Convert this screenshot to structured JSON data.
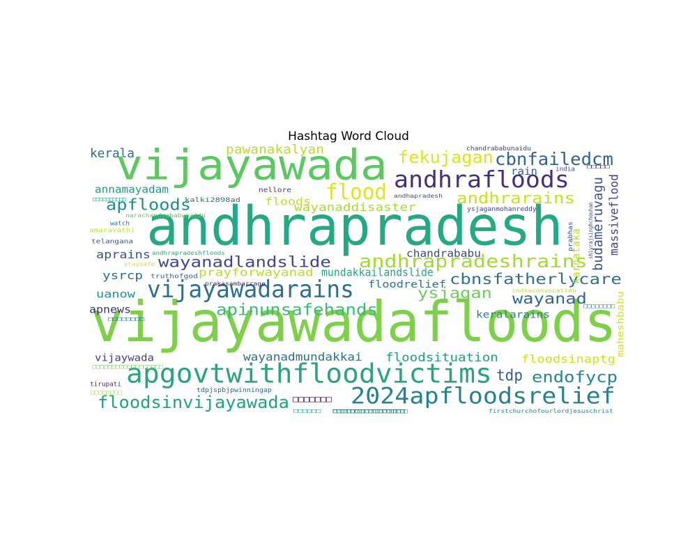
{
  "chart_data": {
    "type": "wordcloud",
    "title": "Hashtag Word Cloud",
    "colormap": "viridis",
    "words": [
      {
        "text": "andhrapradesh",
        "color": "#25a983"
      },
      {
        "text": "vijayawadafloods",
        "color": "#7ed04b"
      },
      {
        "text": "vijayawada",
        "color": "#5cc862"
      },
      {
        "text": "apgovtwithfloodvictims",
        "color": "#2aa37f"
      },
      {
        "text": "2024apfloodsrelief",
        "color": "#26818e"
      },
      {
        "text": "andhrafloods",
        "color": "#472f7d"
      },
      {
        "text": "vijayawadarains",
        "color": "#2e6e8e"
      },
      {
        "text": "andhrapradeshrains",
        "color": "#a2da37"
      },
      {
        "text": "floodsinvijayawada",
        "color": "#1fa287"
      },
      {
        "text": "flood",
        "color": "#e2e418"
      },
      {
        "text": "cbnfailedcm",
        "color": "#33628d"
      },
      {
        "text": "fekujagan",
        "color": "#dde318"
      },
      {
        "text": "apfloods",
        "color": "#228c8d"
      },
      {
        "text": "andhrarains",
        "color": "#c8e020"
      },
      {
        "text": "wayanadlandslide",
        "color": "#3f4788"
      },
      {
        "text": "cbnsfatherlycare",
        "color": "#2c718e"
      },
      {
        "text": "apinunsafehands",
        "color": "#3cbc75"
      },
      {
        "text": "endofycp",
        "color": "#24878e"
      },
      {
        "text": "ysjagan",
        "color": "#6ece58"
      },
      {
        "text": "wayanad",
        "color": "#32658e"
      },
      {
        "text": "tdp",
        "color": "#365c8d"
      },
      {
        "text": "pawanakalyan",
        "color": "#b5de2b"
      },
      {
        "text": "kerala",
        "color": "#2f6c8e"
      },
      {
        "text": "wayanaddisaster",
        "color": "#a8db34"
      },
      {
        "text": "floodsituation",
        "color": "#1fa088"
      },
      {
        "text": "wayanadmundakkai",
        "color": "#2d718e"
      },
      {
        "text": "floodsinaptg",
        "color": "#d0e11c"
      },
      {
        "text": "budameruvagu",
        "color": "#3b528b"
      },
      {
        "text": "massiveflood",
        "color": "#414487"
      },
      {
        "text": "karnataka",
        "color": "#bddf26"
      },
      {
        "text": "annamayadam",
        "color": "#1f9a8a"
      },
      {
        "text": "rain",
        "color": "#355f8d"
      },
      {
        "text": "floods",
        "color": "#c0df25"
      },
      {
        "text": "prayforwayanad",
        "color": "#b8de29"
      },
      {
        "text": "mundakkailandslide",
        "color": "#22a884"
      },
      {
        "text": "aprains",
        "color": "#3a538b"
      },
      {
        "text": "chandrababu",
        "color": "#3e4989"
      },
      {
        "text": "ysrcp",
        "color": "#306a8e"
      },
      {
        "text": "uanow",
        "color": "#21918c"
      },
      {
        "text": "apnews",
        "color": "#46327e"
      },
      {
        "text": "floodrelief",
        "color": "#2e6f8e"
      },
      {
        "text": "keralarains",
        "color": "#297b8e"
      },
      {
        "text": "vijaywada",
        "color": "#433e85"
      },
      {
        "text": "maheshbabu",
        "color": "#d2e21b"
      },
      {
        "text": "chandrababunaidu",
        "color": "#404688"
      },
      {
        "text": "india",
        "color": "#3b528b"
      },
      {
        "text": "nellore",
        "color": "#443b84"
      },
      {
        "text": "kalki2898ad",
        "color": "#31688e"
      },
      {
        "text": "andhapradesh",
        "color": "#3c4f8a"
      },
      {
        "text": "ysjaganmohanreddy",
        "color": "#3f4889"
      },
      {
        "text": "narachandrababunaidu",
        "color": "#5ec962"
      },
      {
        "text": "watch",
        "color": "#2a788e"
      },
      {
        "text": "amaravathi",
        "color": "#c2df23"
      },
      {
        "text": "telangana",
        "color": "#3d4e8a"
      },
      {
        "text": "andhrapradeshfloods",
        "color": "#25ab82"
      },
      {
        "text": "staysafe",
        "color": "#d8e219"
      },
      {
        "text": "truthofgod",
        "color": "#355e8d"
      },
      {
        "text": "prakasambarrage",
        "color": "#482475"
      },
      {
        "text": "prabhas",
        "color": "#3b528b"
      },
      {
        "text": "shivrajsinghchouhan",
        "color": "#39568c"
      },
      {
        "text": "indiaconvocation",
        "color": "#bade28"
      },
      {
        "text": "tirupati",
        "color": "#482173"
      },
      {
        "text": "tdpjspbjpwinningap",
        "color": "#31678e"
      },
      {
        "text": "firstchurchofourlordjesuschrist",
        "color": "#277f8e"
      },
      {
        "text": "□□□□□□□",
        "color": "#440154"
      },
      {
        "text": "□□□□□□□□□□□□□□□□",
        "color": "#29af7f"
      },
      {
        "text": "□□□□□□□□□□□□□□□□□□",
        "color": "#6ccd5a"
      },
      {
        "text": "□□□□□□□□",
        "color": "#2c728e"
      },
      {
        "text": "□□□□□□□□",
        "color": "#2c738e"
      },
      {
        "text": "□□□□□",
        "color": "#482878"
      },
      {
        "text": "□□□□□□",
        "color": "#20a386"
      },
      {
        "text": "□□□□□□□□",
        "color": "#9dd93b"
      },
      {
        "text": "□□□□□□□□□□",
        "color": "#1fa187"
      },
      {
        "text": "□□□□□□□□□□□□□□□□□□□□□",
        "color": "#3b518b"
      }
    ]
  }
}
